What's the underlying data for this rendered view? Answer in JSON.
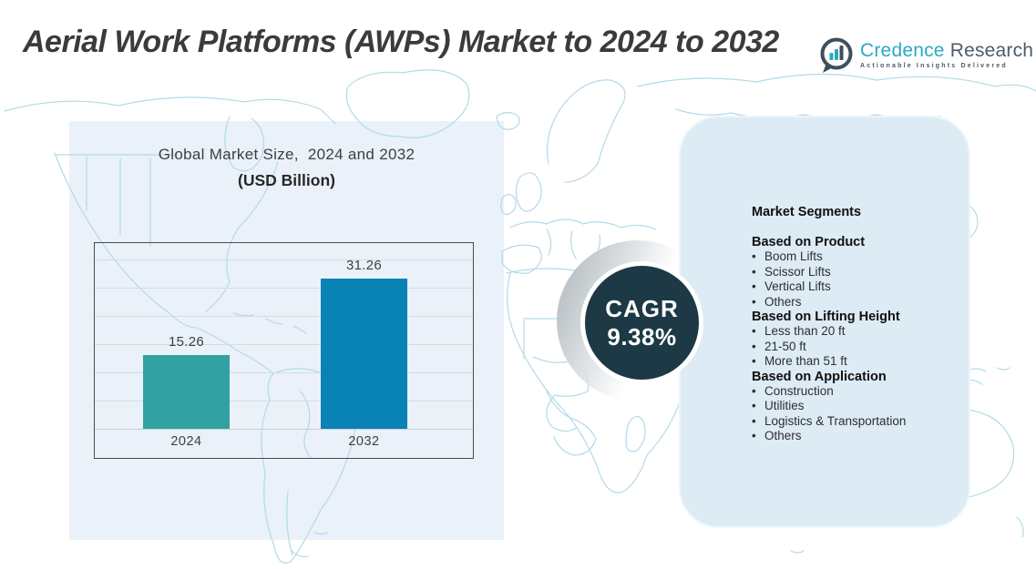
{
  "title": "Aerial Work Platforms (AWPs) Market to 2024 to 2032",
  "logo": {
    "brand_primary": "Credence",
    "brand_secondary": "Research",
    "tagline": "Actionable Insights Delivered",
    "icon": "bar-chart-speech-bubble-icon",
    "brand_color": "#2AA9C5",
    "secondary_color": "#4C5C6A"
  },
  "chart_data": {
    "type": "bar",
    "title": "Global Market Size,  2024 and 2032",
    "subtitle": "(USD Billion)",
    "categories": [
      "2024",
      "2032"
    ],
    "values": [
      15.26,
      31.26
    ],
    "value_labels": [
      "15.26",
      "31.26"
    ],
    "bar_colors": [
      "#31A1A2",
      "#0982B4"
    ],
    "xlabel": "",
    "ylabel": "USD Billion",
    "ylim": [
      0,
      35
    ],
    "grid": true,
    "gridline_step": 5,
    "legend": "none"
  },
  "cagr": {
    "label": "CAGR",
    "value": "9.38%",
    "circle_color": "#1C3945"
  },
  "segments": {
    "heading": "Market Segments",
    "sections": [
      {
        "title": "Based on Product",
        "items": [
          "Boom Lifts",
          "Scissor Lifts",
          "Vertical Lifts",
          "Others"
        ]
      },
      {
        "title": "Based on Lifting Height",
        "items": [
          "Less than 20 ft",
          "21-50 ft",
          "More than 51 ft"
        ]
      },
      {
        "title": "Based on Application",
        "items": [
          "Construction",
          "Utilities",
          "Logistics & Transportation",
          "Others"
        ]
      }
    ]
  },
  "colors": {
    "left_panel": "#EAF1F9",
    "right_panel": "#DCEBF4",
    "map_line": "#B5D9E8",
    "bar_2024": "#31A1A2",
    "bar_2032": "#0982B4",
    "cagr_circle": "#1C3945",
    "title_text": "#3B3B3B"
  }
}
